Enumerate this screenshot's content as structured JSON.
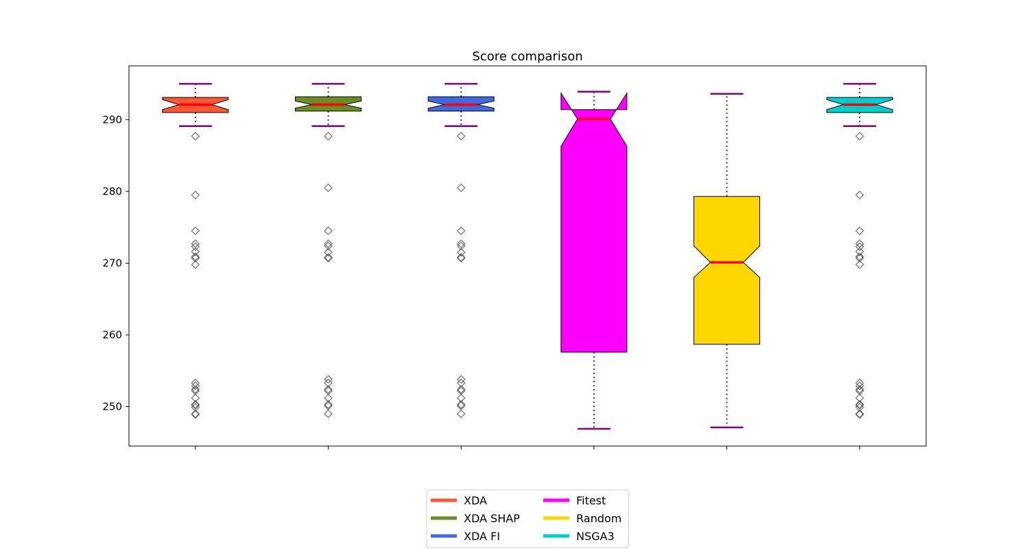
{
  "chart_data": {
    "type": "box",
    "title": "Score comparison",
    "xlabel": "",
    "ylabel": "",
    "ylim": [
      244.5,
      297.5
    ],
    "yticks": [
      250,
      260,
      270,
      280,
      290
    ],
    "notched": true,
    "grid": false,
    "legend_position": "bottom-center",
    "median_color": "#ff0000",
    "whisker_color": "#800080",
    "flier_color": "#555555",
    "series": [
      {
        "name": "XDA",
        "color": "#ff5733",
        "whisker_low": 289.1,
        "q1": 291.0,
        "median": 292.1,
        "q3": 293.1,
        "whisker_high": 295.0,
        "notch_low": 291.4,
        "notch_high": 292.8,
        "outliers": [
          287.7,
          279.5,
          274.5,
          272.7,
          272.3,
          271.6,
          270.9,
          270.7,
          269.8,
          253.3,
          252.9,
          252.4,
          252.2,
          251.2,
          250.3,
          250.2,
          249.9,
          249.0,
          248.9
        ]
      },
      {
        "name": "XDA SHAP",
        "color": "#6b8e23",
        "whisker_low": 289.1,
        "q1": 291.2,
        "median": 292.1,
        "q3": 293.2,
        "whisker_high": 295.0,
        "notch_low": 291.6,
        "notch_high": 292.6,
        "outliers": [
          287.7,
          280.5,
          274.5,
          272.7,
          272.4,
          271.5,
          270.8,
          270.7,
          253.8,
          253.3,
          252.4,
          252.2,
          251.2,
          250.3,
          250.1,
          249.0
        ]
      },
      {
        "name": "XDA FI",
        "color": "#4169e1",
        "whisker_low": 289.1,
        "q1": 291.2,
        "median": 292.1,
        "q3": 293.2,
        "whisker_high": 295.0,
        "notch_low": 291.6,
        "notch_high": 292.6,
        "outliers": [
          287.7,
          280.5,
          274.5,
          272.7,
          272.4,
          271.5,
          270.8,
          270.7,
          253.8,
          253.3,
          252.4,
          252.2,
          251.2,
          250.3,
          250.1,
          249.0
        ]
      },
      {
        "name": "Fitest",
        "color": "#ff00ff",
        "whisker_low": 246.9,
        "q1": 257.6,
        "median": 290.1,
        "q3": 291.4,
        "whisker_high": 293.9,
        "notch_low": 286.3,
        "notch_high": 293.7,
        "outliers": []
      },
      {
        "name": "Random",
        "color": "#ffd700",
        "whisker_low": 247.1,
        "q1": 258.7,
        "median": 270.1,
        "q3": 279.3,
        "whisker_high": 293.6,
        "notch_low": 268.0,
        "notch_high": 272.4,
        "outliers": []
      },
      {
        "name": "NSGA3",
        "color": "#00ced1",
        "whisker_low": 289.1,
        "q1": 291.0,
        "median": 292.1,
        "q3": 293.1,
        "whisker_high": 295.0,
        "notch_low": 291.4,
        "notch_high": 292.8,
        "outliers": [
          287.7,
          279.5,
          274.5,
          272.7,
          272.3,
          271.6,
          270.9,
          270.7,
          269.8,
          253.3,
          252.9,
          252.4,
          252.2,
          251.2,
          250.3,
          250.2,
          249.9,
          249.0,
          248.9
        ]
      }
    ]
  }
}
